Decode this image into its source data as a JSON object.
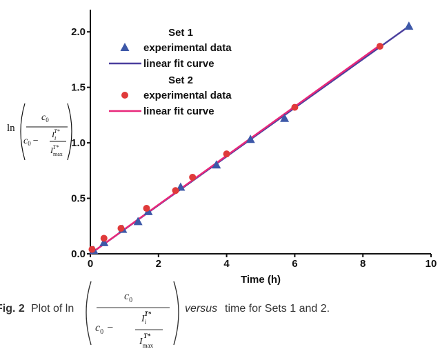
{
  "chart_data": {
    "type": "scatter",
    "x_label": "Time (h)",
    "y_label": {
      "ln": "ln",
      "num": "c",
      "num_sub": "0",
      "den": "c",
      "den_sub": "0",
      "minus": "−",
      "i_top": "I",
      "i_top_sub": "i",
      "i_top_sup": "T*",
      "i_bot": "I",
      "i_bot_sub": "max",
      "i_bot_sup": "T*"
    },
    "xlim": [
      0,
      10
    ],
    "ylim": [
      0,
      2.2
    ],
    "xticks": [
      0,
      2,
      4,
      6,
      8,
      10
    ],
    "yticks": [
      {
        "value": 0,
        "label": "0.0"
      },
      0.5,
      {
        "value": 1,
        "label": "1.0"
      },
      1.5,
      {
        "value": 2,
        "label": "2.0"
      }
    ],
    "legend_titles": [
      "Set 1",
      "Set 2"
    ],
    "series": [
      {
        "name": "experimental data",
        "group": 0,
        "marker": "triangle",
        "color": "#3d58a8",
        "x": [
          0.1,
          0.4,
          0.95,
          1.4,
          1.7,
          2.65,
          3.7,
          4.7,
          5.7,
          9.35
        ],
        "values": [
          0.03,
          0.1,
          0.22,
          0.29,
          0.38,
          0.6,
          0.8,
          1.03,
          1.22,
          2.05
        ]
      },
      {
        "name": "linear fit curve",
        "group": 0,
        "marker": "line",
        "color": "#4b3f9e",
        "x": [
          0,
          9.35
        ],
        "values": [
          0,
          2.05
        ]
      },
      {
        "name": "experimental data",
        "group": 1,
        "marker": "circle",
        "color": "#e03a3a",
        "x": [
          0.05,
          0.4,
          0.9,
          1.65,
          2.5,
          3.0,
          4.0,
          6.0,
          8.5
        ],
        "values": [
          0.04,
          0.14,
          0.23,
          0.41,
          0.57,
          0.69,
          0.9,
          1.32,
          1.87
        ]
      },
      {
        "name": "linear fit curve",
        "group": 1,
        "marker": "line",
        "color": "#e8287a",
        "x": [
          0,
          8.5
        ],
        "values": [
          0,
          1.88
        ]
      }
    ]
  },
  "caption": {
    "label": "Fig. 2",
    "before": "Plot of ln",
    "num": "c",
    "num_sub": "0",
    "den": "c",
    "den_sub": "0",
    "minus": "−",
    "i_top": "I",
    "i_top_sub": "i",
    "i_top_sup": "T*",
    "i_bot": "I",
    "i_bot_sub": "max",
    "i_bot_sup": "T*",
    "versus": "versus",
    "after": "time for Sets 1 and 2."
  }
}
